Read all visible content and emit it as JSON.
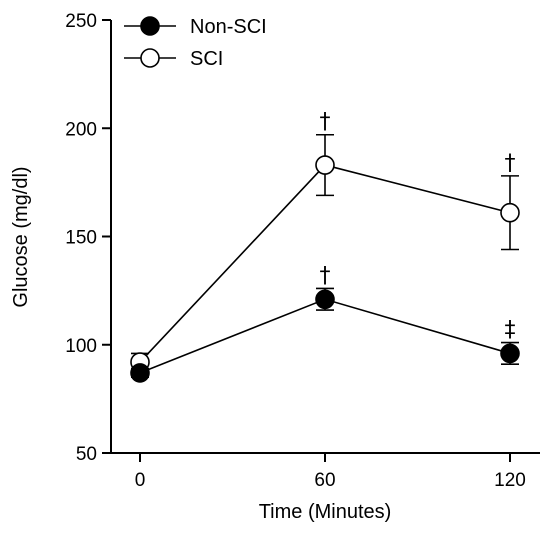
{
  "chart_data": {
    "type": "line",
    "title": "",
    "xlabel": "Time (Minutes)",
    "ylabel": "Glucose (mg/dl)",
    "x": [
      0,
      60,
      120
    ],
    "x_tick_labels": [
      "0",
      "60",
      "120"
    ],
    "y_tick_labels": [
      "50",
      "100",
      "150",
      "200",
      "250"
    ],
    "y_ticks": [
      50,
      100,
      150,
      200,
      250
    ],
    "ylim": [
      50,
      250
    ],
    "xlim": [
      -15,
      130
    ],
    "grid": false,
    "legend_position": "top-left",
    "series": [
      {
        "name": "Non-SCI",
        "marker": "filled-circle",
        "values": [
          87,
          121,
          96
        ],
        "errors": [
          2,
          5,
          5
        ],
        "annotations": [
          "",
          "†",
          "‡"
        ]
      },
      {
        "name": "SCI",
        "marker": "open-circle",
        "values": [
          92,
          183,
          161
        ],
        "errors": [
          4,
          14,
          17
        ],
        "annotations": [
          "",
          "†",
          "†"
        ]
      }
    ]
  }
}
